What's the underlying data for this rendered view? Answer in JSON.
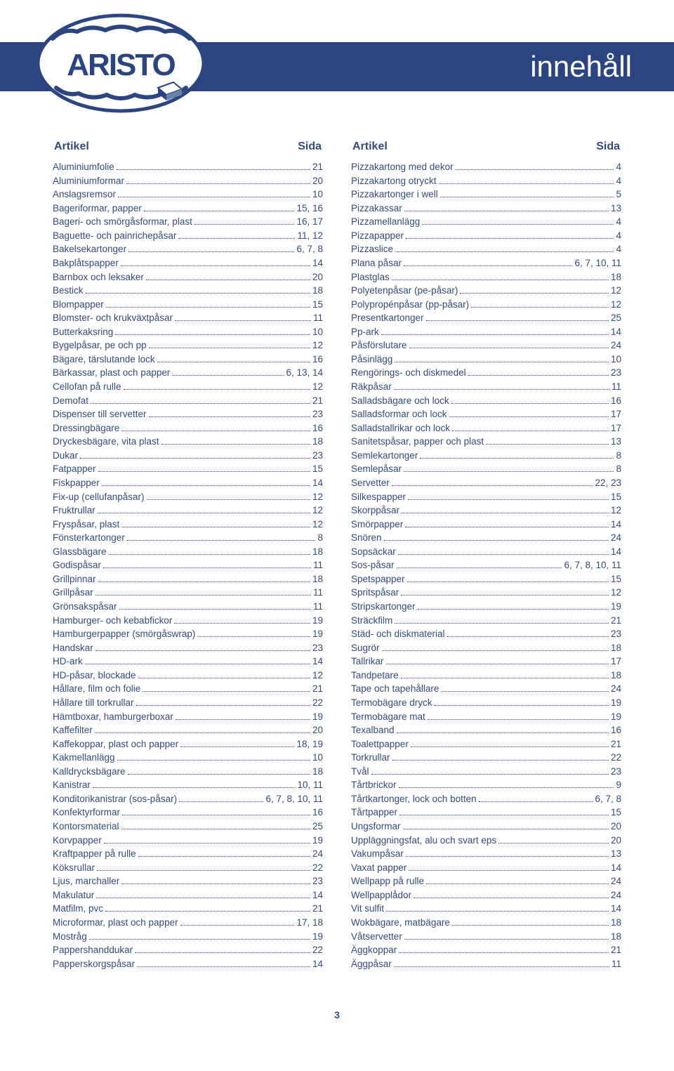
{
  "header": {
    "title": "innehåll"
  },
  "column_header": {
    "label": "Artikel",
    "page": "Sida"
  },
  "page_number": "3",
  "colors": {
    "band": "#2c4480",
    "text": "#354b7a",
    "background": "#ffffff"
  },
  "left": [
    {
      "label": "Aluminiumfolie",
      "page": "21"
    },
    {
      "label": "Aluminiumformar",
      "page": "20"
    },
    {
      "label": "Anslagsremsor",
      "page": "10"
    },
    {
      "label": "Bageriformar, papper",
      "page": "15, 16"
    },
    {
      "label": "Bageri- och smörgåsformar, plast",
      "page": "16, 17"
    },
    {
      "label": "Baguette- och painrichepåsar",
      "page": "11, 12"
    },
    {
      "label": "Bakelsekartonger",
      "page": "6, 7, 8"
    },
    {
      "label": "Bakplåtspapper",
      "page": "14"
    },
    {
      "label": "Barnbox och leksaker",
      "page": "20"
    },
    {
      "label": "Bestick",
      "page": "18"
    },
    {
      "label": "Blompapper",
      "page": "15"
    },
    {
      "label": "Blomster- och krukväxtpåsar",
      "page": "11"
    },
    {
      "label": "Butterkaksring",
      "page": "10"
    },
    {
      "label": "Bygelpåsar, pe och pp",
      "page": "12"
    },
    {
      "label": "Bägare, tärslutande lock",
      "page": "16"
    },
    {
      "label": "Bärkassar, plast och papper",
      "page": "6, 13, 14"
    },
    {
      "label": "Cellofan på rulle",
      "page": "12"
    },
    {
      "label": "Demofat",
      "page": "21"
    },
    {
      "label": "Dispenser till servetter",
      "page": "23"
    },
    {
      "label": "Dressingbägare",
      "page": "16"
    },
    {
      "label": "Dryckesbägare, vita plast",
      "page": "18"
    },
    {
      "label": "Dukar",
      "page": "23"
    },
    {
      "label": "Fatpapper",
      "page": "15"
    },
    {
      "label": "Fiskpapper",
      "page": "14"
    },
    {
      "label": "Fix-up (cellufanpåsar)",
      "page": "12"
    },
    {
      "label": "Fruktrullar",
      "page": "12"
    },
    {
      "label": "Fryspåsar, plast",
      "page": "12"
    },
    {
      "label": "Fönsterkartonger",
      "page": "8"
    },
    {
      "label": "Glassbägare",
      "page": "18"
    },
    {
      "label": "Godispåsar",
      "page": "11"
    },
    {
      "label": "Grillpinnar",
      "page": "18"
    },
    {
      "label": "Grillpåsar",
      "page": "11"
    },
    {
      "label": "Grönsakspåsar",
      "page": "11"
    },
    {
      "label": "Hamburger- och kebabfickor",
      "page": "19"
    },
    {
      "label": "Hamburgerpapper (smörgåswrap)",
      "page": "19"
    },
    {
      "label": "Handskar",
      "page": "23"
    },
    {
      "label": "HD-ark",
      "page": "14"
    },
    {
      "label": "HD-påsar, blockade",
      "page": "12"
    },
    {
      "label": "Hållare, film och folie",
      "page": "21"
    },
    {
      "label": "Hållare till torkrullar",
      "page": "22"
    },
    {
      "label": "Hämtboxar, hamburgerboxar",
      "page": "19"
    },
    {
      "label": "Kaffefilter",
      "page": "20"
    },
    {
      "label": "Kaffekoppar, plast och papper",
      "page": "18, 19"
    },
    {
      "label": "Kakmellanlägg",
      "page": "10"
    },
    {
      "label": "Kalldrycksbägare",
      "page": "18"
    },
    {
      "label": "Kanistrar",
      "page": "10, 11"
    },
    {
      "label": "Konditorikanistrar (sos-påsar)",
      "page": "6, 7, 8, 10, 11"
    },
    {
      "label": "Konfektyrformar",
      "page": "16"
    },
    {
      "label": "Kontorsmaterial",
      "page": "25"
    },
    {
      "label": "Korvpapper",
      "page": "19"
    },
    {
      "label": "Kraftpapper på rulle",
      "page": "24"
    },
    {
      "label": "Köksrullar",
      "page": "22"
    },
    {
      "label": "Ljus, marchaller",
      "page": "23"
    },
    {
      "label": "Makulatur",
      "page": "14"
    },
    {
      "label": "Matfilm, pvc",
      "page": "21"
    },
    {
      "label": "Microformar, plast och papper",
      "page": "17, 18"
    },
    {
      "label": "Mostråg",
      "page": "19"
    },
    {
      "label": "Pappershanddukar",
      "page": "22"
    },
    {
      "label": "Papperskorgspåsar",
      "page": "14"
    }
  ],
  "right": [
    {
      "label": "Pizzakartong med dekor",
      "page": "4"
    },
    {
      "label": "Pizzakartong otryckt",
      "page": "4"
    },
    {
      "label": "Pizzakartonger i well",
      "page": "5"
    },
    {
      "label": "Pizzakassar",
      "page": "13"
    },
    {
      "label": "Pizzamellanlägg",
      "page": "4"
    },
    {
      "label": "Pizzapapper",
      "page": "4"
    },
    {
      "label": "Pizzaslice",
      "page": "4"
    },
    {
      "label": "Plana påsar",
      "page": "6, 7, 10, 11"
    },
    {
      "label": "Plastglas",
      "page": "18"
    },
    {
      "label": "Polyetenpåsar (pe-påsar)",
      "page": "12"
    },
    {
      "label": "Polypropénpåsar (pp-påsar)",
      "page": "12"
    },
    {
      "label": "Presentkartonger",
      "page": "25"
    },
    {
      "label": "Pp-ark",
      "page": "14"
    },
    {
      "label": "Påsförslutare",
      "page": "24"
    },
    {
      "label": "Påsinlägg",
      "page": "10"
    },
    {
      "label": "Rengörings- och diskmedel",
      "page": "23"
    },
    {
      "label": "Räkpåsar",
      "page": "11"
    },
    {
      "label": "Salladsbägare och lock",
      "page": "16"
    },
    {
      "label": "Salladsformar och lock",
      "page": "17"
    },
    {
      "label": "Salladstallrikar och lock",
      "page": "17"
    },
    {
      "label": "Sanitetspåsar, papper och plast",
      "page": "13"
    },
    {
      "label": "Semlekartonger",
      "page": "8"
    },
    {
      "label": "Semlepåsar",
      "page": "8"
    },
    {
      "label": "Servetter",
      "page": "22, 23"
    },
    {
      "label": "Silkespapper",
      "page": "15"
    },
    {
      "label": "Skorppåsar",
      "page": "12"
    },
    {
      "label": "Smörpapper",
      "page": "14"
    },
    {
      "label": "Snören",
      "page": "24"
    },
    {
      "label": "Sopsäckar",
      "page": "14"
    },
    {
      "label": "Sos-påsar",
      "page": "6, 7, 8, 10, 11"
    },
    {
      "label": "Spetspapper",
      "page": "15"
    },
    {
      "label": "Spritspåsar",
      "page": "12"
    },
    {
      "label": "Stripskartonger",
      "page": "19"
    },
    {
      "label": "Sträckfilm",
      "page": "21"
    },
    {
      "label": "Städ- och diskmaterial",
      "page": "23"
    },
    {
      "label": "Sugrör",
      "page": "18"
    },
    {
      "label": "Tallrikar",
      "page": "17"
    },
    {
      "label": "Tandpetare",
      "page": "18"
    },
    {
      "label": "Tape och tapehållare",
      "page": "24"
    },
    {
      "label": "Termobägare dryck",
      "page": "19"
    },
    {
      "label": "Termobägare mat",
      "page": "19"
    },
    {
      "label": "Texalband",
      "page": "16"
    },
    {
      "label": "Toalettpapper",
      "page": "21"
    },
    {
      "label": "Torkrullar",
      "page": "22"
    },
    {
      "label": "Tvål",
      "page": "23"
    },
    {
      "label": "Tårtbrickor",
      "page": "9"
    },
    {
      "label": "Tårtkartonger, lock och botten",
      "page": "6, 7, 8"
    },
    {
      "label": "Tårtpapper",
      "page": "15"
    },
    {
      "label": "Ungsformar",
      "page": "20"
    },
    {
      "label": "Uppläggningsfat, alu och svart eps",
      "page": "20"
    },
    {
      "label": "Vakumpåsar",
      "page": "13"
    },
    {
      "label": "Vaxat papper",
      "page": "14"
    },
    {
      "label": "Wellpapp på rulle",
      "page": "24"
    },
    {
      "label": "Wellpapplådor",
      "page": "24"
    },
    {
      "label": "Vit sulfit",
      "page": "14"
    },
    {
      "label": "Wokbägare, matbägare",
      "page": "18"
    },
    {
      "label": "Våtservetter",
      "page": "18"
    },
    {
      "label": "Äggkoppar",
      "page": "21"
    },
    {
      "label": "Äggpåsar",
      "page": "11"
    }
  ]
}
